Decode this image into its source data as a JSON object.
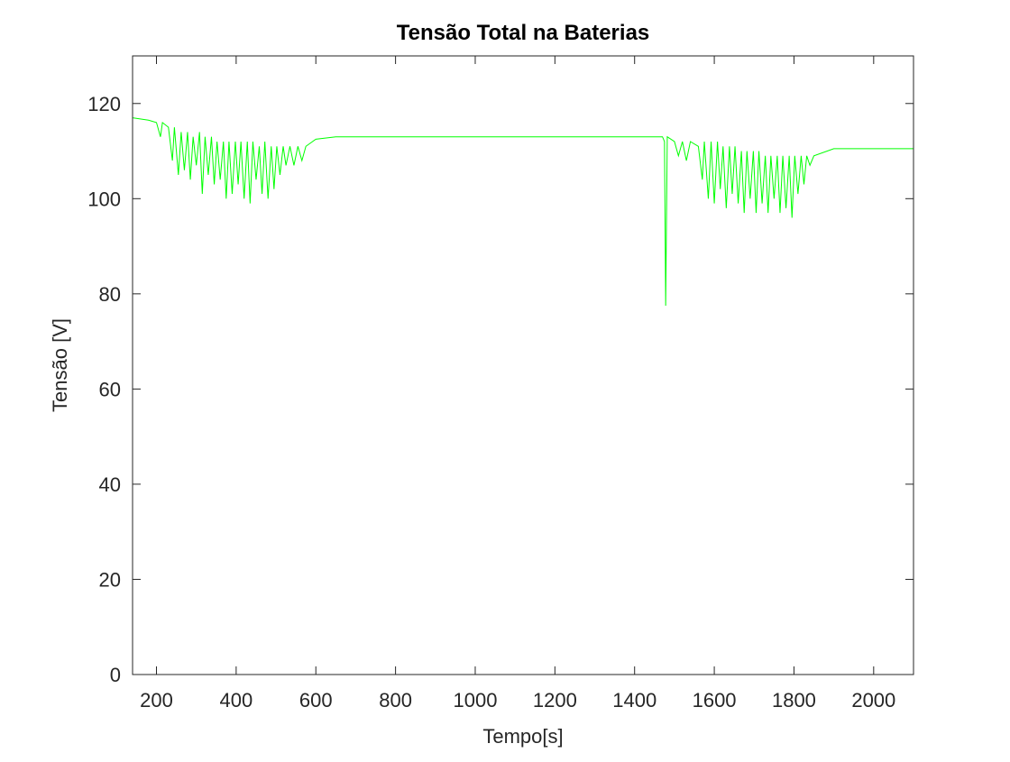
{
  "chart_data": {
    "type": "line",
    "title": "Tensão Total na Baterias",
    "xlabel": "Tempo[s]",
    "ylabel": "Tensão [V]",
    "x": [
      140,
      180,
      200,
      210,
      215,
      230,
      240,
      245,
      255,
      262,
      270,
      278,
      285,
      292,
      300,
      308,
      315,
      322,
      330,
      338,
      345,
      352,
      360,
      368,
      375,
      382,
      390,
      398,
      405,
      412,
      420,
      428,
      435,
      442,
      450,
      458,
      465,
      472,
      480,
      488,
      495,
      502,
      510,
      518,
      525,
      535,
      545,
      555,
      565,
      575,
      600,
      650,
      1000,
      1470,
      1475,
      1478,
      1482,
      1500,
      1510,
      1520,
      1530,
      1540,
      1560,
      1570,
      1575,
      1585,
      1592,
      1600,
      1608,
      1615,
      1622,
      1630,
      1638,
      1645,
      1652,
      1660,
      1668,
      1675,
      1682,
      1690,
      1698,
      1705,
      1712,
      1720,
      1728,
      1735,
      1742,
      1750,
      1758,
      1765,
      1772,
      1780,
      1788,
      1795,
      1802,
      1810,
      1818,
      1825,
      1832,
      1840,
      1850,
      1900,
      2000,
      2100
    ],
    "series": [
      {
        "color": "#00ff00",
        "values": [
          117,
          116.5,
          116,
          113,
          116,
          115,
          108,
          115,
          105,
          114,
          106,
          114,
          104,
          113,
          107,
          114,
          101,
          113,
          105,
          113,
          103,
          112,
          104,
          112,
          100,
          112,
          101,
          112,
          103,
          112,
          100,
          112,
          99,
          112,
          104,
          111,
          101,
          112,
          100,
          111,
          102,
          111,
          105,
          111,
          107,
          111,
          107,
          111,
          108,
          111,
          112.5,
          113,
          113,
          113,
          112,
          77.5,
          113,
          112,
          109,
          112,
          108,
          112,
          111,
          104,
          112,
          100,
          112,
          99,
          112,
          102,
          111,
          98,
          111,
          101,
          111,
          99,
          110,
          97,
          110,
          100,
          110,
          97,
          110,
          99,
          109,
          97,
          109,
          100,
          109,
          97,
          109,
          98,
          109,
          96,
          109,
          101,
          109,
          103,
          109,
          107,
          109,
          110.5,
          110.5,
          110.5
        ]
      }
    ],
    "xlim": [
      140,
      2100
    ],
    "ylim": [
      0,
      130
    ],
    "xticks": [
      200,
      400,
      600,
      800,
      1000,
      1200,
      1400,
      1600,
      1800,
      2000
    ],
    "yticks": [
      0,
      20,
      40,
      60,
      80,
      100,
      120
    ]
  }
}
